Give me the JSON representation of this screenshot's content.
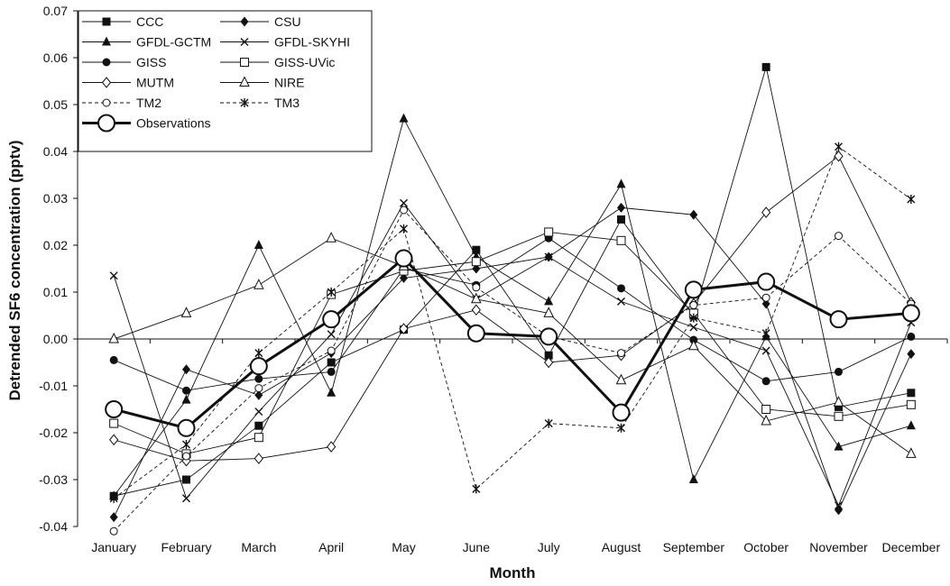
{
  "chart_data": {
    "type": "line",
    "xlabel": "Month",
    "ylabel": "Detrended SF6 concentration (pptv)",
    "ylim": [
      -0.04,
      0.07
    ],
    "yticks": [
      "0.07",
      "0.06",
      "0.05",
      "0.04",
      "0.03",
      "0.02",
      "0.01",
      "0.00",
      "-0.01",
      "-0.02",
      "-0.03",
      "-0.04"
    ],
    "categories": [
      "January",
      "February",
      "March",
      "April",
      "May",
      "June",
      "July",
      "August",
      "September",
      "October",
      "November",
      "December"
    ],
    "grid": false,
    "legend_position": "top-left",
    "series": [
      {
        "name": "CCC",
        "marker": "square-filled",
        "dash": "solid",
        "values": [
          -0.0335,
          -0.03,
          -0.0185,
          -0.005,
          0.002,
          0.019,
          -0.0035,
          0.0255,
          0.005,
          0.058,
          -0.0145,
          -0.0115
        ]
      },
      {
        "name": "CSU",
        "marker": "diamond-filled",
        "dash": "solid",
        "values": [
          -0.038,
          -0.0065,
          -0.012,
          -0.003,
          0.013,
          0.015,
          0.0175,
          0.028,
          0.0265,
          0.0075,
          -0.0365,
          -0.0032
        ]
      },
      {
        "name": "GFDL-GCTM",
        "marker": "triangle-filled",
        "dash": "solid",
        "values": [
          -0.0335,
          -0.013,
          0.02,
          -0.0115,
          0.047,
          0.0175,
          0.008,
          0.033,
          -0.03,
          0.0005,
          -0.023,
          -0.0185
        ]
      },
      {
        "name": "GFDL-SKYHI",
        "marker": "x",
        "dash": "solid",
        "values": [
          0.0135,
          -0.034,
          -0.0155,
          0.001,
          0.029,
          0.0085,
          0.0175,
          0.008,
          0.0025,
          -0.0025,
          -0.0355,
          0.0035
        ]
      },
      {
        "name": "GISS",
        "marker": "circle-filled",
        "dash": "solid",
        "values": [
          -0.0045,
          -0.011,
          -0.0085,
          -0.007,
          0.015,
          0.0115,
          0.0215,
          0.0108,
          -0.0002,
          -0.009,
          -0.007,
          0.0005
        ]
      },
      {
        "name": "GISS-UVic",
        "marker": "square-open",
        "dash": "solid",
        "values": [
          -0.018,
          -0.0245,
          -0.021,
          0.0095,
          0.0145,
          0.0165,
          0.0228,
          0.021,
          0.0055,
          -0.015,
          -0.0165,
          -0.014
        ]
      },
      {
        "name": "MUTM",
        "marker": "diamond-open",
        "dash": "solid",
        "values": [
          -0.0215,
          -0.026,
          -0.0255,
          -0.023,
          0.0022,
          0.0062,
          -0.005,
          -0.0035,
          0.0075,
          0.027,
          0.039,
          0.0078
        ]
      },
      {
        "name": "NIRE",
        "marker": "triangle-open",
        "dash": "solid",
        "values": [
          0.0,
          0.0055,
          0.0115,
          0.0215,
          0.0155,
          0.0085,
          0.0055,
          -0.0088,
          -0.0015,
          -0.0175,
          -0.0135,
          -0.0245
        ]
      },
      {
        "name": "TM2",
        "marker": "circle-open",
        "dash": "dashed",
        "values": [
          -0.041,
          -0.025,
          -0.0105,
          -0.0025,
          0.0275,
          0.011,
          0.0005,
          -0.003,
          0.0072,
          0.0088,
          0.022,
          0.0075
        ]
      },
      {
        "name": "TM3",
        "marker": "asterisk",
        "dash": "dashed",
        "values": [
          -0.034,
          -0.0225,
          -0.003,
          0.01,
          0.0235,
          -0.032,
          -0.018,
          -0.019,
          0.0045,
          0.0012,
          0.041,
          0.0298
        ]
      },
      {
        "name": "Observations",
        "marker": "circle-open-large",
        "dash": "thick",
        "values": [
          -0.015,
          -0.019,
          -0.0058,
          0.0042,
          0.0172,
          0.0012,
          0.0005,
          -0.0157,
          0.0105,
          0.0122,
          0.0042,
          0.0055
        ]
      }
    ]
  }
}
